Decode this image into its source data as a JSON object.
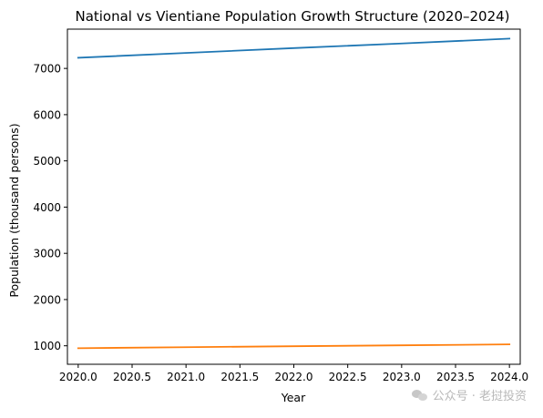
{
  "chart_data": {
    "type": "line",
    "title": "National vs Vientiane Population Growth Structure (2020–2024)",
    "xlabel": "Year",
    "ylabel": "Population (thousand persons)",
    "x": [
      2020,
      2021,
      2022,
      2023,
      2024
    ],
    "series": [
      {
        "values": [
          7231,
          7335,
          7440,
          7540,
          7645
        ],
        "color": "#1f77b4"
      },
      {
        "values": [
          948,
          970,
          990,
          1010,
          1030
        ],
        "color": "#ff7f0e"
      }
    ],
    "xlim": [
      2019.9,
      2024.1
    ],
    "ylim": [
      600,
      7850
    ],
    "x_ticks": [
      "2020.0",
      "2020.5",
      "2021.0",
      "2021.5",
      "2022.0",
      "2022.5",
      "2023.0",
      "2023.5",
      "2024.0"
    ],
    "y_ticks": [
      "1000",
      "2000",
      "3000",
      "4000",
      "5000",
      "6000",
      "7000"
    ],
    "grid": false,
    "legend": "none"
  },
  "watermark": {
    "text": "公众号 · 老挝投资",
    "icon": "wechat-icon"
  }
}
